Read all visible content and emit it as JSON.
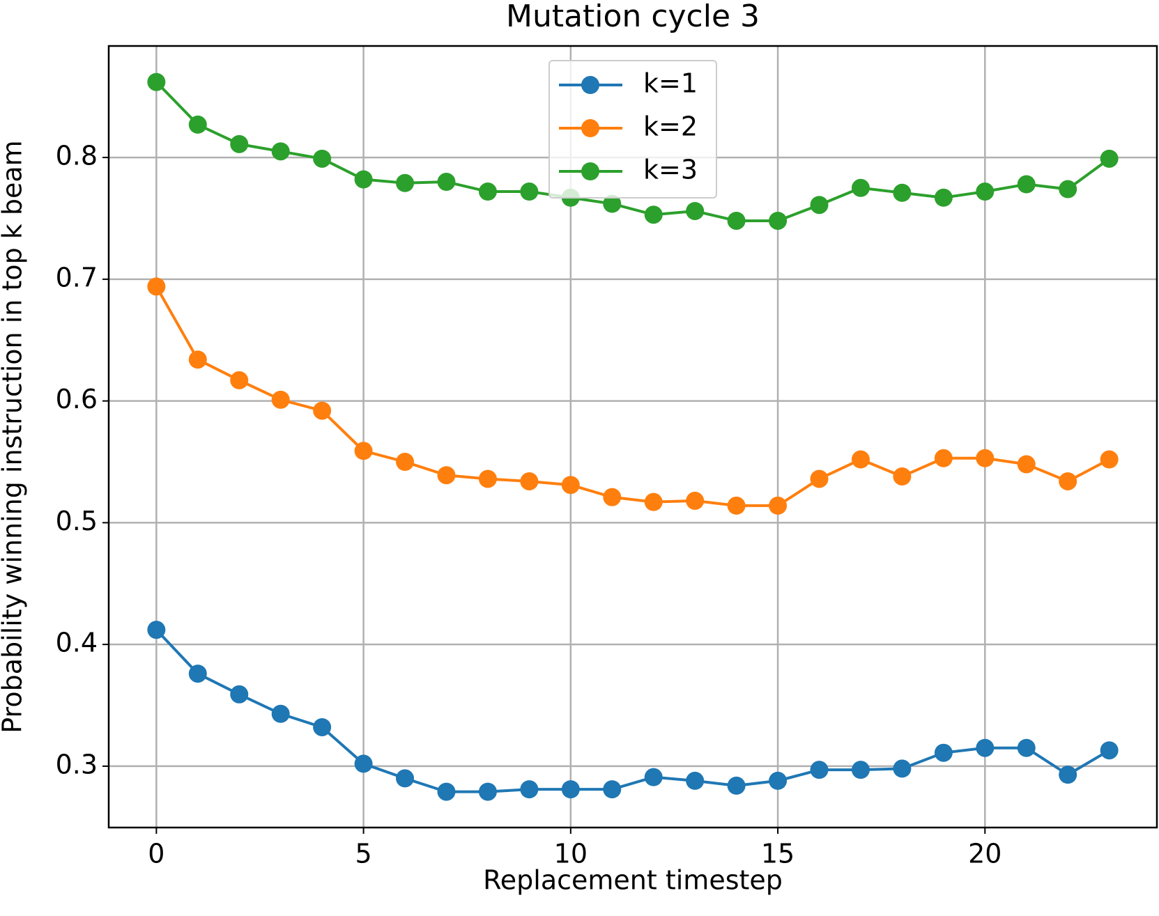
{
  "chart_data": {
    "type": "line",
    "title": "Mutation cycle 3",
    "x_label": "Replacement timestep",
    "y_label": "Probability winning instruction in top k beam",
    "x": [
      0,
      1,
      2,
      3,
      4,
      5,
      6,
      7,
      8,
      9,
      10,
      11,
      12,
      13,
      14,
      15,
      16,
      17,
      18,
      19,
      20,
      21,
      22,
      23
    ],
    "series": [
      {
        "name": "k=1",
        "color": "#1f77b4",
        "values": [
          0.412,
          0.376,
          0.359,
          0.343,
          0.332,
          0.302,
          0.29,
          0.279,
          0.279,
          0.281,
          0.281,
          0.281,
          0.291,
          0.288,
          0.284,
          0.288,
          0.297,
          0.297,
          0.298,
          0.311,
          0.315,
          0.315,
          0.293,
          0.313
        ]
      },
      {
        "name": "k=2",
        "color": "#ff7f0e",
        "values": [
          0.694,
          0.634,
          0.617,
          0.601,
          0.592,
          0.559,
          0.55,
          0.539,
          0.536,
          0.534,
          0.531,
          0.521,
          0.517,
          0.518,
          0.514,
          0.514,
          0.536,
          0.552,
          0.538,
          0.553,
          0.553,
          0.548,
          0.534,
          0.552
        ]
      },
      {
        "name": "k=3",
        "color": "#2ca02c",
        "values": [
          0.862,
          0.827,
          0.811,
          0.805,
          0.799,
          0.782,
          0.779,
          0.78,
          0.772,
          0.772,
          0.767,
          0.762,
          0.753,
          0.756,
          0.748,
          0.748,
          0.761,
          0.775,
          0.771,
          0.767,
          0.772,
          0.778,
          0.774,
          0.799
        ]
      }
    ],
    "xlim": [
      -1.15,
      24.15
    ],
    "xticks": [
      0,
      5,
      10,
      15,
      20
    ],
    "ylim": [
      0.2496,
      0.8916
    ],
    "yticks": [
      0.3,
      0.4,
      0.5,
      0.6,
      0.7,
      0.8
    ],
    "grid": true,
    "legend": "upper center"
  }
}
